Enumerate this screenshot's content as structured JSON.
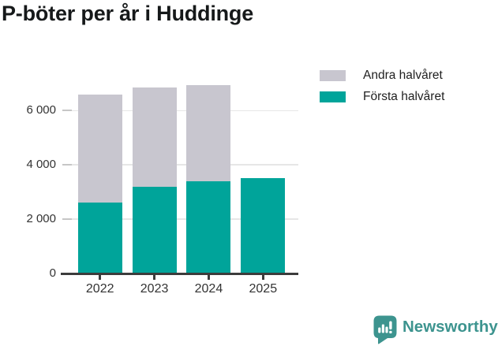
{
  "chart_data": {
    "type": "bar",
    "stacked": true,
    "title": "P-böter per år i Huddinge",
    "categories": [
      "2022",
      "2023",
      "2024",
      "2025"
    ],
    "series": [
      {
        "name": "Första halvåret",
        "color": "#00a49a",
        "values": [
          2600,
          3200,
          3400,
          3500
        ]
      },
      {
        "name": "Andra halvåret",
        "color": "#c8c6cf",
        "values": [
          4000,
          3650,
          3550,
          0
        ]
      }
    ],
    "totals": [
      6600,
      6850,
      6950,
      3500
    ],
    "ylim": [
      0,
      7200
    ],
    "yticks": [
      0,
      2000,
      4000,
      6000
    ],
    "ytick_labels": [
      "0",
      "2 000",
      "4 000",
      "6 000"
    ],
    "legend_position": "top-right",
    "legend_order": [
      "Andra halvåret",
      "Första halvåret"
    ],
    "grid": "horizontal"
  },
  "colors": {
    "first_half": "#00a49a",
    "second_half": "#c8c6cf",
    "axis_line": "#3c3c3c",
    "gridline": "#e6e6e6",
    "text": "#333333",
    "title": "#16191a",
    "brand": "#3d948f"
  },
  "branding": {
    "logo_text": "Newsworthy"
  }
}
